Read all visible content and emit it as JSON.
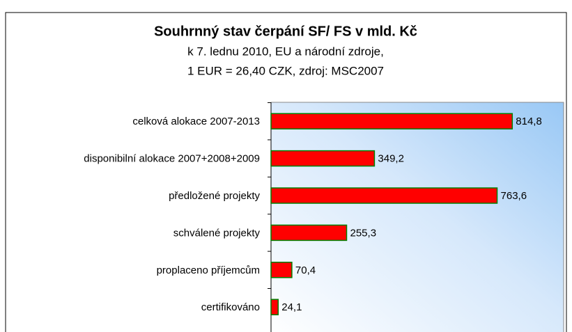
{
  "chart_data": {
    "type": "bar",
    "orientation": "horizontal",
    "title": "Souhrnný stav čerpání SF/ FS v mld. Kč",
    "subtitle": [
      "k 7. lednu 2010, EU a národní zdroje,",
      "1 EUR = 26,40 CZK, zdroj: MSC2007"
    ],
    "categories": [
      "celková alokace 2007-2013",
      "disponibilní alokace 2007+2008+2009",
      "předložené projekty",
      "schválené projekty",
      "proplaceno příjemcům",
      "certifikováno"
    ],
    "values": [
      814.8,
      349.2,
      763.6,
      255.3,
      70.4,
      24.1
    ],
    "value_labels": [
      "814,8",
      "349,2",
      "763,6",
      "255,3",
      "70,4",
      "24,1"
    ],
    "color": "#ff0000",
    "edge_color": "#008000",
    "xlim": [
      0,
      1000
    ]
  }
}
